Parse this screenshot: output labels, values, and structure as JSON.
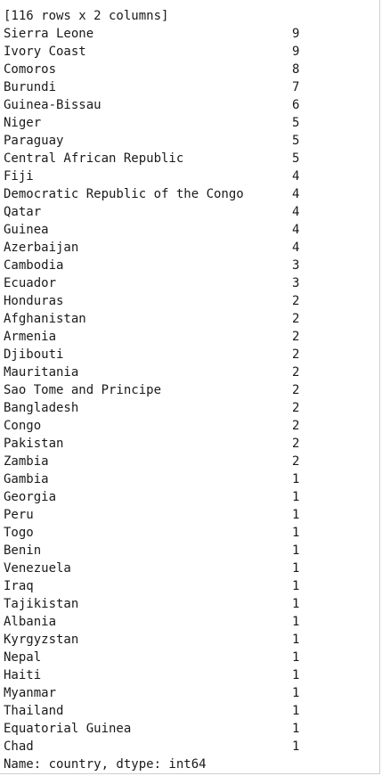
{
  "output": {
    "summary": "[116 rows x 2 columns]",
    "rows": [
      {
        "country": "Sierra Leone",
        "count": "9"
      },
      {
        "country": "Ivory Coast",
        "count": "9"
      },
      {
        "country": "Comoros",
        "count": "8"
      },
      {
        "country": "Burundi",
        "count": "7"
      },
      {
        "country": "Guinea-Bissau",
        "count": "6"
      },
      {
        "country": "Niger",
        "count": "5"
      },
      {
        "country": "Paraguay",
        "count": "5"
      },
      {
        "country": "Central African Republic",
        "count": "5"
      },
      {
        "country": "Fiji",
        "count": "4"
      },
      {
        "country": "Democratic Republic of the Congo",
        "count": "4"
      },
      {
        "country": "Qatar",
        "count": "4"
      },
      {
        "country": "Guinea",
        "count": "4"
      },
      {
        "country": "Azerbaijan",
        "count": "4"
      },
      {
        "country": "Cambodia",
        "count": "3"
      },
      {
        "country": "Ecuador",
        "count": "3"
      },
      {
        "country": "Honduras",
        "count": "2"
      },
      {
        "country": "Afghanistan",
        "count": "2"
      },
      {
        "country": "Armenia",
        "count": "2"
      },
      {
        "country": "Djibouti",
        "count": "2"
      },
      {
        "country": "Mauritania",
        "count": "2"
      },
      {
        "country": "Sao Tome and Principe",
        "count": "2"
      },
      {
        "country": "Bangladesh",
        "count": "2"
      },
      {
        "country": "Congo",
        "count": "2"
      },
      {
        "country": "Pakistan",
        "count": "2"
      },
      {
        "country": "Zambia",
        "count": "2"
      },
      {
        "country": "Gambia",
        "count": "1"
      },
      {
        "country": "Georgia",
        "count": "1"
      },
      {
        "country": "Peru",
        "count": "1"
      },
      {
        "country": "Togo",
        "count": "1"
      },
      {
        "country": "Benin",
        "count": "1"
      },
      {
        "country": "Venezuela",
        "count": "1"
      },
      {
        "country": "Iraq",
        "count": "1"
      },
      {
        "country": "Tajikistan",
        "count": "1"
      },
      {
        "country": "Albania",
        "count": "1"
      },
      {
        "country": "Kyrgyzstan",
        "count": "1"
      },
      {
        "country": "Nepal",
        "count": "1"
      },
      {
        "country": "Haiti",
        "count": "1"
      },
      {
        "country": "Myanmar",
        "count": "1"
      },
      {
        "country": "Thailand",
        "count": "1"
      },
      {
        "country": "Equatorial Guinea",
        "count": "1"
      },
      {
        "country": "Chad",
        "count": "1"
      }
    ],
    "footer": "Name: country, dtype: int64"
  }
}
